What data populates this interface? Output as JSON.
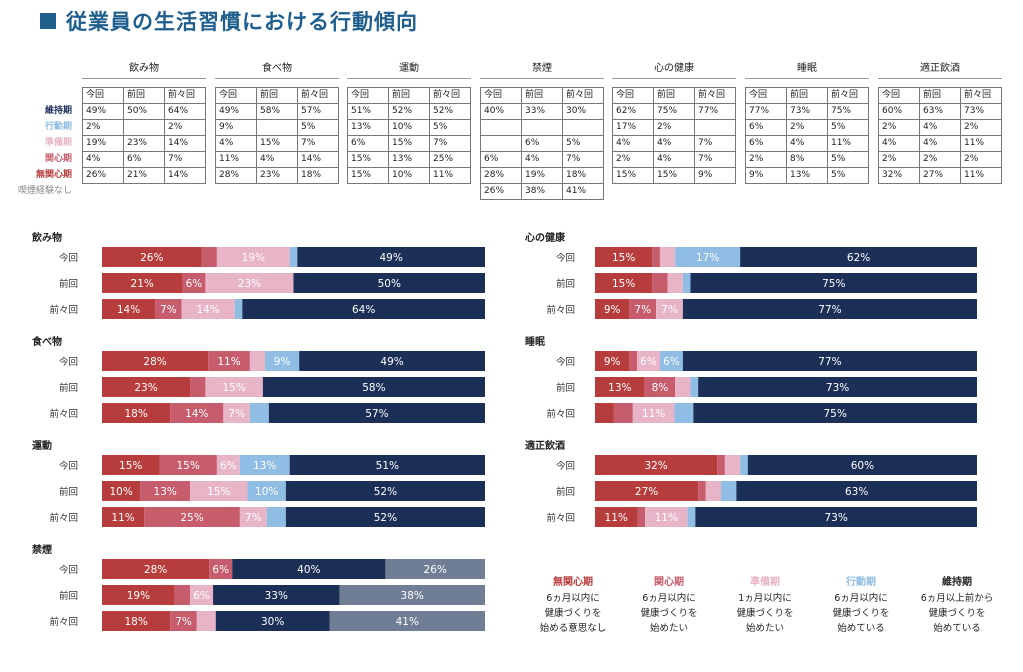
{
  "title": "従業員の生活習慣における行動傾向",
  "colors": {
    "無関心期": "#b73c3c",
    "関心期": "#c65c6c",
    "準備期": "#e8b4c8",
    "行動期": "#8fbde3",
    "維持期": "#1b2f57",
    "喫煙経験なし": "#6f7d95"
  },
  "row_labels": [
    "維持期",
    "行動期",
    "準備期",
    "関心期",
    "無関心期",
    "喫煙経験なし"
  ],
  "col_headers": [
    "今回",
    "前回",
    "前々回"
  ],
  "tables": [
    {
      "name": "飲み物",
      "rows": [
        [
          "49%",
          "50%",
          "64%"
        ],
        [
          "2%",
          "",
          "2%"
        ],
        [
          "19%",
          "23%",
          "14%"
        ],
        [
          "4%",
          "6%",
          "7%"
        ],
        [
          "26%",
          "21%",
          "14%"
        ]
      ]
    },
    {
      "name": "食べ物",
      "rows": [
        [
          "49%",
          "58%",
          "57%"
        ],
        [
          "9%",
          "",
          "5%"
        ],
        [
          "4%",
          "15%",
          "7%"
        ],
        [
          "11%",
          "4%",
          "14%"
        ],
        [
          "28%",
          "23%",
          "18%"
        ]
      ]
    },
    {
      "name": "運動",
      "rows": [
        [
          "51%",
          "52%",
          "52%"
        ],
        [
          "13%",
          "10%",
          "5%"
        ],
        [
          "6%",
          "15%",
          "7%"
        ],
        [
          "15%",
          "13%",
          "25%"
        ],
        [
          "15%",
          "10%",
          "11%"
        ]
      ]
    },
    {
      "name": "禁煙",
      "rows": [
        [
          "40%",
          "33%",
          "30%"
        ],
        [
          "",
          "",
          ""
        ],
        [
          "",
          "6%",
          "5%"
        ],
        [
          "6%",
          "4%",
          "7%"
        ],
        [
          "28%",
          "19%",
          "18%"
        ],
        [
          "26%",
          "38%",
          "41%"
        ]
      ]
    },
    {
      "name": "心の健康",
      "rows": [
        [
          "62%",
          "75%",
          "77%"
        ],
        [
          "17%",
          "2%",
          ""
        ],
        [
          "4%",
          "4%",
          "7%"
        ],
        [
          "2%",
          "4%",
          "7%"
        ],
        [
          "15%",
          "15%",
          "9%"
        ]
      ]
    },
    {
      "name": "睡眠",
      "rows": [
        [
          "77%",
          "73%",
          "75%"
        ],
        [
          "6%",
          "2%",
          "5%"
        ],
        [
          "6%",
          "4%",
          "11%"
        ],
        [
          "2%",
          "8%",
          "5%"
        ],
        [
          "9%",
          "13%",
          "5%"
        ]
      ]
    },
    {
      "name": "適正飲酒",
      "rows": [
        [
          "60%",
          "63%",
          "73%"
        ],
        [
          "2%",
          "4%",
          "2%"
        ],
        [
          "4%",
          "4%",
          "11%"
        ],
        [
          "2%",
          "2%",
          "2%"
        ],
        [
          "32%",
          "27%",
          "11%"
        ]
      ]
    }
  ],
  "chart_data": {
    "type": "bar",
    "stacked": true,
    "orientation": "horizontal",
    "categories": [
      "今回",
      "前回",
      "前々回"
    ],
    "stack_order": [
      "無関心期",
      "関心期",
      "準備期",
      "行動期",
      "維持期",
      "喫煙経験なし"
    ],
    "groups": [
      {
        "name": "飲み物",
        "bars": [
          {
            "values": [
              26,
              4,
              19,
              2,
              49,
              0
            ],
            "labels": [
              "26%",
              "",
              "19%",
              "",
              "49%",
              ""
            ]
          },
          {
            "values": [
              21,
              6,
              23,
              0,
              50,
              0
            ],
            "labels": [
              "21%",
              "6%",
              "23%",
              "",
              "50%",
              ""
            ]
          },
          {
            "values": [
              14,
              7,
              14,
              2,
              64,
              0
            ],
            "labels": [
              "14%",
              "7%",
              "14%",
              "",
              "64%",
              ""
            ]
          }
        ]
      },
      {
        "name": "食べ物",
        "bars": [
          {
            "values": [
              28,
              11,
              4,
              9,
              49,
              0
            ],
            "labels": [
              "28%",
              "11%",
              "",
              "9%",
              "49%",
              ""
            ]
          },
          {
            "values": [
              23,
              4,
              15,
              0,
              58,
              0
            ],
            "labels": [
              "23%",
              "",
              "15%",
              "",
              "58%",
              ""
            ]
          },
          {
            "values": [
              18,
              14,
              7,
              5,
              57,
              0
            ],
            "labels": [
              "18%",
              "14%",
              "7%",
              "",
              "57%",
              ""
            ]
          }
        ]
      },
      {
        "name": "運動",
        "bars": [
          {
            "values": [
              15,
              15,
              6,
              13,
              51,
              0
            ],
            "labels": [
              "15%",
              "15%",
              "6%",
              "13%",
              "51%",
              ""
            ]
          },
          {
            "values": [
              10,
              13,
              15,
              10,
              52,
              0
            ],
            "labels": [
              "10%",
              "13%",
              "15%",
              "10%",
              "52%",
              ""
            ]
          },
          {
            "values": [
              11,
              25,
              7,
              5,
              52,
              0
            ],
            "labels": [
              "11%",
              "25%",
              "7%",
              "",
              "52%",
              ""
            ]
          }
        ]
      },
      {
        "name": "禁煙",
        "bars": [
          {
            "values": [
              28,
              6,
              0,
              0,
              40,
              26
            ],
            "labels": [
              "28%",
              "6%",
              "",
              "",
              "40%",
              "26%"
            ]
          },
          {
            "values": [
              19,
              4,
              6,
              0,
              33,
              38
            ],
            "labels": [
              "19%",
              "",
              "6%",
              "",
              "33%",
              "38%"
            ]
          },
          {
            "values": [
              18,
              7,
              5,
              0,
              30,
              41
            ],
            "labels": [
              "18%",
              "7%",
              "",
              "",
              "30%",
              "41%"
            ]
          }
        ]
      },
      {
        "name": "心の健康",
        "bars": [
          {
            "values": [
              15,
              2,
              4,
              17,
              62,
              0
            ],
            "labels": [
              "15%",
              "",
              "",
              "17%",
              "62%",
              ""
            ]
          },
          {
            "values": [
              15,
              4,
              4,
              2,
              75,
              0
            ],
            "labels": [
              "15%",
              "",
              "",
              "",
              "75%",
              ""
            ]
          },
          {
            "values": [
              9,
              7,
              7,
              0,
              77,
              0
            ],
            "labels": [
              "9%",
              "7%",
              "7%",
              "",
              "77%",
              ""
            ]
          }
        ]
      },
      {
        "name": "睡眠",
        "bars": [
          {
            "values": [
              9,
              2,
              6,
              6,
              77,
              0
            ],
            "labels": [
              "9%",
              "",
              "6%",
              "6%",
              "77%",
              ""
            ]
          },
          {
            "values": [
              13,
              8,
              4,
              2,
              73,
              0
            ],
            "labels": [
              "13%",
              "8%",
              "",
              "",
              "73%",
              ""
            ]
          },
          {
            "values": [
              5,
              5,
              11,
              5,
              75,
              0
            ],
            "labels": [
              "",
              "",
              "11%",
              "",
              "75%",
              ""
            ]
          }
        ]
      },
      {
        "name": "適正飲酒",
        "bars": [
          {
            "values": [
              32,
              2,
              4,
              2,
              60,
              0
            ],
            "labels": [
              "32%",
              "",
              "",
              "",
              "60%",
              ""
            ]
          },
          {
            "values": [
              27,
              2,
              4,
              4,
              63,
              0
            ],
            "labels": [
              "27%",
              "",
              "",
              "",
              "63%",
              ""
            ]
          },
          {
            "values": [
              11,
              2,
              11,
              2,
              73,
              0
            ],
            "labels": [
              "11%",
              "",
              "11%",
              "",
              "73%",
              ""
            ]
          }
        ]
      }
    ],
    "xlim": [
      0,
      100
    ]
  },
  "legend": [
    {
      "name": "無関心期",
      "lines": [
        "6ヵ月以内に",
        "健康づくりを",
        "始める意思なし"
      ]
    },
    {
      "name": "関心期",
      "lines": [
        "6ヵ月以内に",
        "健康づくりを",
        "始めたい"
      ]
    },
    {
      "name": "準備期",
      "lines": [
        "1ヵ月以内に",
        "健康づくりを",
        "始めたい"
      ]
    },
    {
      "name": "行動期",
      "lines": [
        "6ヵ月以内に",
        "健康づくりを",
        "始めている"
      ]
    },
    {
      "name": "維持期",
      "lines": [
        "6ヵ月以上前から",
        "健康づくりを",
        "始めている"
      ]
    }
  ]
}
